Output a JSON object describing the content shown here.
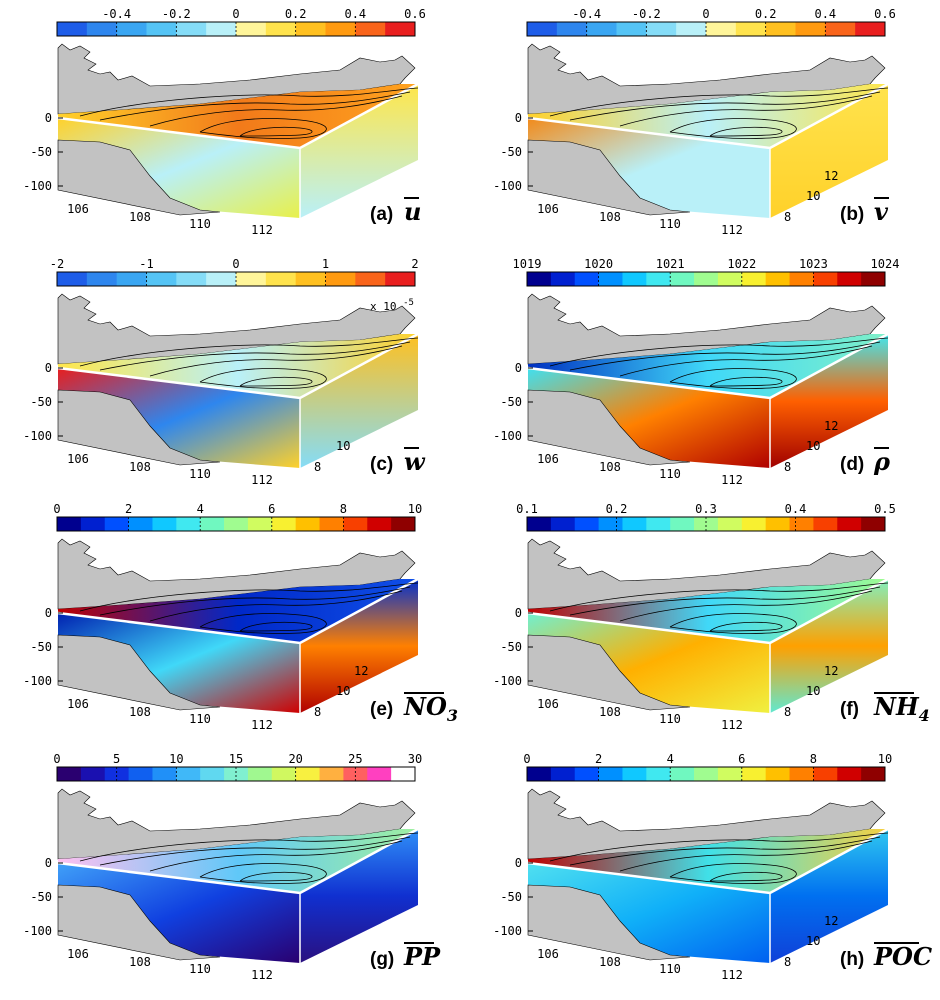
{
  "chart_data": [
    {
      "type": "3d-contour-block",
      "panel_tag": "(a)",
      "variable": "u",
      "colorbar": {
        "min": -0.6,
        "max": 0.6,
        "bins": 12,
        "ticks": [
          "-0.4",
          "-0.2",
          "0",
          "0.2",
          "0.4",
          "0.6"
        ],
        "colors": [
          "#1e5de8",
          "#2e86ee",
          "#3aa6f2",
          "#55c4f5",
          "#85dcf7",
          "#b9f0f8",
          "#fff59a",
          "#ffe34d",
          "#ffc020",
          "#ff9a10",
          "#f9641a",
          "#e81e1e"
        ]
      },
      "face_colors": {
        "top": [
          "#ffd12a",
          "#f27a1a",
          "#ffa31f"
        ],
        "front": [
          "#ffd12a",
          "#b9f0f8",
          "#e8f04a"
        ],
        "side": [
          "#ffe64a",
          "#b9f0f8"
        ]
      },
      "depth_ticks": [
        "0",
        "-50",
        "-100"
      ],
      "lon_ticks": [
        "106",
        "108",
        "110",
        "112"
      ],
      "lat_ticks": []
    },
    {
      "type": "3d-contour-block",
      "panel_tag": "(b)",
      "variable": "v",
      "colorbar": {
        "min": -0.6,
        "max": 0.6,
        "bins": 12,
        "ticks": [
          "-0.4",
          "-0.2",
          "0",
          "0.2",
          "0.4",
          "0.6"
        ],
        "colors": [
          "#1e5de8",
          "#2e86ee",
          "#3aa6f2",
          "#55c4f5",
          "#85dcf7",
          "#b9f0f8",
          "#fff59a",
          "#ffe34d",
          "#ffc020",
          "#ff9a10",
          "#f9641a",
          "#e81e1e"
        ]
      },
      "face_colors": {
        "top": [
          "#ffd12a",
          "#b9f0f8",
          "#ffe64a"
        ],
        "front": [
          "#f28a1a",
          "#b9f0f8",
          "#b9f0f8"
        ],
        "side": [
          "#ffe34d",
          "#ffd12a"
        ]
      },
      "depth_ticks": [
        "0",
        "-50",
        "-100"
      ],
      "lon_ticks": [
        "106",
        "108",
        "110",
        "112"
      ],
      "lat_ticks": [
        "12",
        "10",
        "8"
      ]
    },
    {
      "type": "3d-contour-block",
      "panel_tag": "(c)",
      "variable": "w",
      "colorbar": {
        "min": -2,
        "max": 2,
        "bins": 12,
        "ticks": [
          "-2",
          "-1",
          "0",
          "1",
          "2"
        ],
        "exponent": "x 10",
        "exponent_power": "-5",
        "colors": [
          "#1e5de8",
          "#2e86ee",
          "#3aa6f2",
          "#55c4f5",
          "#85dcf7",
          "#b9f0f8",
          "#fff59a",
          "#ffe34d",
          "#ffc020",
          "#ff9a10",
          "#f9641a",
          "#e81e1e"
        ]
      },
      "face_colors": {
        "top": [
          "#ffe64a",
          "#b9f0f8",
          "#ffd12a"
        ],
        "front": [
          "#e81e1e",
          "#2e86ee",
          "#ffd12a"
        ],
        "side": [
          "#ffc020",
          "#85dcf7"
        ]
      },
      "depth_ticks": [
        "0",
        "-50",
        "-100"
      ],
      "lon_ticks": [
        "106",
        "108",
        "110",
        "112"
      ],
      "lat_ticks": [
        "10",
        "8"
      ]
    },
    {
      "type": "3d-contour-block",
      "panel_tag": "(d)",
      "variable": "ρ",
      "colorbar": {
        "min": 1019,
        "max": 1024,
        "bins": 15,
        "ticks": [
          "1019",
          "1020",
          "1021",
          "1022",
          "1023",
          "1024"
        ],
        "colors": [
          "#00008f",
          "#0020d0",
          "#0050ff",
          "#0090ff",
          "#10c8ff",
          "#40e8f0",
          "#70f8c0",
          "#a0fc90",
          "#d0fc60",
          "#f8f030",
          "#ffc000",
          "#ff8000",
          "#f84000",
          "#d00000",
          "#8f0000"
        ]
      },
      "face_colors": {
        "top": [
          "#0030c0",
          "#40d8f8",
          "#80f0c8"
        ],
        "front": [
          "#40e0f0",
          "#ff8000",
          "#b00000"
        ],
        "side": [
          "#40e8f0",
          "#ff6000",
          "#a00000"
        ]
      },
      "depth_ticks": [
        "0",
        "-50",
        "-100"
      ],
      "lon_ticks": [
        "106",
        "108",
        "110",
        "112"
      ],
      "lat_ticks": [
        "12",
        "10",
        "8"
      ]
    },
    {
      "type": "3d-contour-block",
      "panel_tag": "(e)",
      "variable": "NO3",
      "colorbar": {
        "min": 0,
        "max": 10,
        "bins": 15,
        "ticks": [
          "0",
          "2",
          "4",
          "6",
          "8",
          "10"
        ],
        "colors": [
          "#00008f",
          "#0020d0",
          "#0050ff",
          "#0090ff",
          "#10c8ff",
          "#40e8f0",
          "#70f8c0",
          "#a0fc90",
          "#d0fc60",
          "#f8f030",
          "#ffc000",
          "#ff8000",
          "#f84000",
          "#d00000",
          "#8f0000"
        ]
      },
      "face_colors": {
        "top": [
          "#c00000",
          "#0028c8",
          "#1050e8"
        ],
        "front": [
          "#0020b0",
          "#40d8f8",
          "#d00000"
        ],
        "side": [
          "#0030d0",
          "#ff8000",
          "#b00000"
        ]
      },
      "depth_ticks": [
        "0",
        "-50",
        "-100"
      ],
      "lon_ticks": [
        "106",
        "108",
        "110",
        "112"
      ],
      "lat_ticks": [
        "12",
        "10",
        "8"
      ]
    },
    {
      "type": "3d-contour-block",
      "panel_tag": "(f)",
      "variable": "NH4",
      "colorbar": {
        "min": 0.1,
        "max": 0.5,
        "bins": 15,
        "ticks": [
          "0.1",
          "0.2",
          "0.3",
          "0.4",
          "0.5"
        ],
        "colors": [
          "#00008f",
          "#0020d0",
          "#0050ff",
          "#0090ff",
          "#10c8ff",
          "#40e8f0",
          "#70f8c0",
          "#a0fc90",
          "#d0fc60",
          "#f8f030",
          "#ffc000",
          "#ff8000",
          "#f84000",
          "#d00000",
          "#8f0000"
        ]
      },
      "face_colors": {
        "top": [
          "#c00000",
          "#40d8f8",
          "#a0fc90"
        ],
        "front": [
          "#70f0d0",
          "#ffb000",
          "#f0f040"
        ],
        "side": [
          "#80f0c0",
          "#ffa000",
          "#60e8d0"
        ]
      },
      "depth_ticks": [
        "0",
        "-50",
        "-100"
      ],
      "lon_ticks": [
        "106",
        "108",
        "110",
        "112"
      ],
      "lat_ticks": [
        "12",
        "10",
        "8"
      ]
    },
    {
      "type": "3d-contour-block",
      "panel_tag": "(g)",
      "variable": "PP",
      "colorbar": {
        "min": 0,
        "max": 30,
        "bins": 15,
        "ticks": [
          "0",
          "5",
          "10",
          "15",
          "20",
          "25",
          "30"
        ],
        "colors": [
          "#2a0070",
          "#1a10b0",
          "#1030e0",
          "#1060f0",
          "#2090f8",
          "#40b8f8",
          "#60d8f0",
          "#80f0d0",
          "#a0f890",
          "#d0f860",
          "#f8f040",
          "#ffb040",
          "#ff6060",
          "#ff40c0",
          "#ffffff"
        ]
      },
      "face_colors": {
        "top": [
          "#ffc0f0",
          "#60c8f8",
          "#a0f0a0"
        ],
        "front": [
          "#40a0f8",
          "#1040e0",
          "#2a0070"
        ],
        "side": [
          "#3090f8",
          "#1030d0",
          "#2a1080"
        ]
      },
      "depth_ticks": [
        "0",
        "-50",
        "-100"
      ],
      "lon_ticks": [
        "106",
        "108",
        "110",
        "112"
      ],
      "lat_ticks": []
    },
    {
      "type": "3d-contour-block",
      "panel_tag": "(h)",
      "variable": "POC",
      "colorbar": {
        "min": 0,
        "max": 10,
        "bins": 15,
        "ticks": [
          "0",
          "2",
          "4",
          "6",
          "8",
          "10"
        ],
        "colors": [
          "#00008f",
          "#0020d0",
          "#0050ff",
          "#0090ff",
          "#10c8ff",
          "#40e8f0",
          "#70f8c0",
          "#a0fc90",
          "#d0fc60",
          "#f8f030",
          "#ffc000",
          "#ff8000",
          "#f84000",
          "#d00000",
          "#8f0000"
        ]
      },
      "face_colors": {
        "top": [
          "#c00000",
          "#40e0e8",
          "#f8d040"
        ],
        "front": [
          "#50e0f0",
          "#10b0f8",
          "#0060f0"
        ],
        "side": [
          "#30c8f0",
          "#0070f0",
          "#1040d8"
        ]
      },
      "depth_ticks": [
        "0",
        "-50",
        "-100"
      ],
      "lon_ticks": [
        "106",
        "108",
        "110",
        "112"
      ],
      "lat_ticks": [
        "12",
        "10",
        "8"
      ]
    }
  ]
}
